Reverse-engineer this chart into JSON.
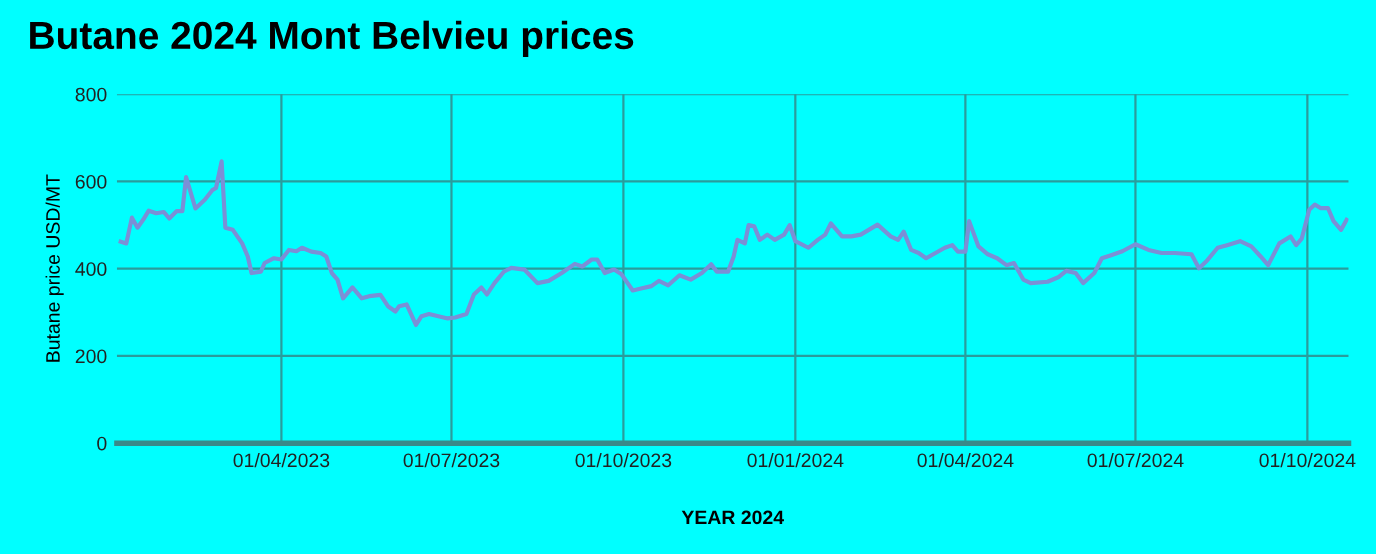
{
  "chart_data": {
    "type": "line",
    "title": "Butane 2024 Mont Belvieu prices",
    "xlabel": "YEAR 2024",
    "ylabel": "Butane price USD/MT",
    "series": [
      {
        "color": "#7b8fd6",
        "x": [
          "2023-01-05",
          "2023-01-08",
          "2023-01-11",
          "2023-01-14",
          "2023-01-17",
          "2023-01-20",
          "2023-01-24",
          "2023-01-28",
          "2023-01-31",
          "2023-02-04",
          "2023-02-07",
          "2023-02-09",
          "2023-02-14",
          "2023-02-19",
          "2023-02-23",
          "2023-02-25",
          "2023-02-28",
          "2023-03-02",
          "2023-03-06",
          "2023-03-11",
          "2023-03-14",
          "2023-03-16",
          "2023-03-21",
          "2023-03-23",
          "2023-03-28",
          "2023-04-01",
          "2023-04-05",
          "2023-04-09",
          "2023-04-12",
          "2023-04-17",
          "2023-04-22",
          "2023-04-25",
          "2023-04-28",
          "2023-05-01",
          "2023-05-04",
          "2023-05-09",
          "2023-05-14",
          "2023-05-18",
          "2023-05-24",
          "2023-05-28",
          "2023-06-01",
          "2023-06-03",
          "2023-06-07",
          "2023-06-12",
          "2023-06-15",
          "2023-06-19",
          "2023-06-24",
          "2023-06-29",
          "2023-07-03",
          "2023-07-09",
          "2023-07-13",
          "2023-07-17",
          "2023-07-20",
          "2023-07-24",
          "2023-07-29",
          "2023-08-02",
          "2023-08-09",
          "2023-08-16",
          "2023-08-22",
          "2023-08-29",
          "2023-09-05",
          "2023-09-09",
          "2023-09-14",
          "2023-09-17",
          "2023-09-21",
          "2023-09-26",
          "2023-09-30",
          "2023-10-06",
          "2023-10-11",
          "2023-10-16",
          "2023-10-20",
          "2023-10-25",
          "2023-10-31",
          "2023-11-06",
          "2023-11-12",
          "2023-11-17",
          "2023-11-20",
          "2023-11-26",
          "2023-11-29",
          "2023-12-01",
          "2023-12-05",
          "2023-12-07",
          "2023-12-10",
          "2023-12-13",
          "2023-12-17",
          "2023-12-21",
          "2023-12-26",
          "2023-12-29",
          "2024-01-01",
          "2024-01-08",
          "2024-01-13",
          "2024-01-17",
          "2024-01-20",
          "2024-01-26",
          "2024-01-31",
          "2024-02-05",
          "2024-02-14",
          "2024-02-21",
          "2024-02-25",
          "2024-02-28",
          "2024-03-03",
          "2024-03-07",
          "2024-03-11",
          "2024-03-16",
          "2024-03-21",
          "2024-03-25",
          "2024-03-28",
          "2024-04-01",
          "2024-04-03",
          "2024-04-08",
          "2024-04-13",
          "2024-04-18",
          "2024-04-23",
          "2024-04-27",
          "2024-05-02",
          "2024-05-06",
          "2024-05-15",
          "2024-05-21",
          "2024-05-25",
          "2024-05-30",
          "2024-06-03",
          "2024-06-09",
          "2024-06-13",
          "2024-06-18",
          "2024-06-24",
          "2024-07-01",
          "2024-07-08",
          "2024-07-15",
          "2024-07-22",
          "2024-07-31",
          "2024-08-04",
          "2024-08-08",
          "2024-08-14",
          "2024-08-19",
          "2024-08-26",
          "2024-09-01",
          "2024-09-06",
          "2024-09-10",
          "2024-09-16",
          "2024-09-22",
          "2024-09-25",
          "2024-09-28",
          "2024-10-02",
          "2024-10-05",
          "2024-10-08",
          "2024-10-12",
          "2024-10-15",
          "2024-10-19",
          "2024-10-22"
        ],
        "values": [
          462,
          458,
          517,
          494,
          512,
          533,
          527,
          530,
          515,
          532,
          532,
          610,
          538,
          558,
          580,
          585,
          646,
          494,
          489,
          458,
          428,
          390,
          393,
          413,
          424,
          421,
          443,
          440,
          448,
          439,
          436,
          428,
          390,
          375,
          332,
          357,
          332,
          337,
          340,
          314,
          302,
          314,
          318,
          271,
          291,
          296,
          291,
          286,
          288,
          296,
          341,
          357,
          341,
          367,
          393,
          402,
          398,
          367,
          372,
          390,
          411,
          405,
          421,
          421,
          390,
          398,
          387,
          350,
          355,
          360,
          372,
          362,
          385,
          375,
          390,
          410,
          393,
          393,
          428,
          466,
          458,
          500,
          497,
          466,
          478,
          466,
          478,
          500,
          463,
          448,
          466,
          478,
          504,
          474,
          474,
          478,
          501,
          474,
          466,
          485,
          443,
          436,
          424,
          436,
          448,
          454,
          439,
          439,
          509,
          451,
          433,
          424,
          408,
          413,
          375,
          367,
          370,
          381,
          395,
          390,
          367,
          390,
          424,
          431,
          440,
          456,
          443,
          436,
          436,
          433,
          401,
          417,
          448,
          454,
          463,
          451,
          428,
          408,
          458,
          474,
          454,
          469,
          535,
          547,
          539,
          539,
          509,
          489,
          512
        ]
      }
    ],
    "xlim": [
      "2023-01-03",
      "2024-10-23"
    ],
    "xticks": [
      {
        "value": "2023-04-01",
        "label": "01/04/2023"
      },
      {
        "value": "2023-07-01",
        "label": "01/07/2023"
      },
      {
        "value": "2023-10-01",
        "label": "01/10/2023"
      },
      {
        "value": "2024-01-01",
        "label": "01/01/2024"
      },
      {
        "value": "2024-04-01",
        "label": "01/04/2024"
      },
      {
        "value": "2024-07-01",
        "label": "01/07/2024"
      },
      {
        "value": "2024-10-01",
        "label": "01/10/2024"
      }
    ],
    "ylim": [
      0,
      800
    ],
    "yticks": [
      0,
      200,
      400,
      600,
      800
    ],
    "grid": true,
    "marker": "none",
    "line_style": "solid"
  }
}
